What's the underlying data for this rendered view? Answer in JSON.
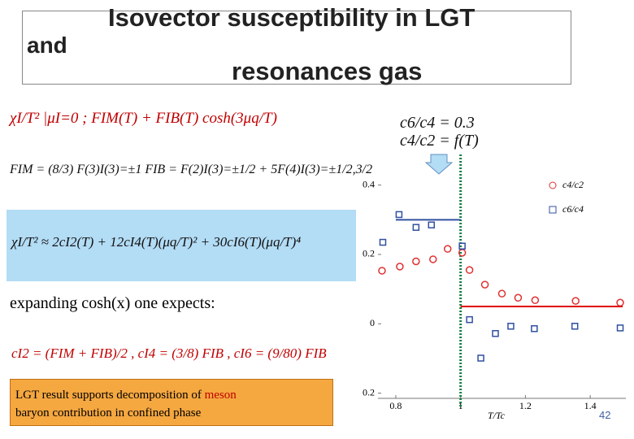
{
  "header": {
    "title": "Isovector susceptibility  in LGT",
    "and": "and",
    "subtitle": "resonances  gas"
  },
  "ratios": [
    "c6/c4 = 0.3",
    "c4/c2 = f(T)"
  ],
  "equations": [
    "χI/T² |μI=0 ;  FIM(T) + FIB(T) cosh(3μq/T)",
    "FIM = (8/3) F(3)I(3)=±1      FIB = F(2)I(3)=±1/2 + 5F(4)I(3)=±1/2,3/2",
    "χI/T² ≈ 2cI2(T) + 12cI4(T)(μq/T)² + 30cI6(T)(μq/T)⁴",
    "cI2 = (FIM + FIB)/2 ,  cI4 = (3/8) FIB ,  cI6 = (9/80) FIB"
  ],
  "expanding": "expanding cosh(x) one expects:",
  "note": [
    "LGT result supports decomposition of",
    "meson",
    "baryon  contribution  in confined phase"
  ],
  "page_number": "42",
  "chart_data": {
    "type": "scatter",
    "x_label": "T/Tc",
    "xlim": [
      0.745,
      1.51
    ],
    "ylim": [
      -0.215,
      0.5
    ],
    "xticks": [
      0.8,
      1,
      1.2,
      1.4
    ],
    "yticks": [
      0.4,
      0.2,
      0,
      {
        "value": -0.2,
        "label": "0.2"
      }
    ],
    "marker_x": 1,
    "series": [
      {
        "name": "c4/c2",
        "color": "#e03030",
        "marker": "circle",
        "x": [
          0.7575,
          0.8125,
          0.8625,
          0.915,
          0.96,
          1.005,
          1.0275,
          1.075,
          1.1275,
          1.1775,
          1.23,
          1.355,
          1.4925
        ],
        "values": [
          0.153,
          0.165,
          0.18,
          0.186,
          0.216,
          0.205,
          0.155,
          0.113,
          0.087,
          0.075,
          0.068,
          0.066,
          0.061
        ]
      },
      {
        "name": "c6/c4",
        "color": "#3050a0",
        "marker": "square",
        "x": [
          0.76,
          0.81,
          0.8625,
          0.91,
          1.005,
          1.0275,
          1.0625,
          1.1075,
          1.155,
          1.2275,
          1.3525,
          1.4925
        ],
        "values": [
          0.235,
          0.315,
          0.278,
          0.285,
          0.224,
          0.012,
          -0.099,
          -0.028,
          -0.007,
          -0.014,
          -0.007,
          -0.012
        ]
      }
    ],
    "reference_lines": [
      {
        "color": "#3050a0",
        "value": 0.3,
        "x": [
          0.8,
          1
        ]
      },
      {
        "color": "#e00000",
        "value": 0.05,
        "x": [
          1,
          1.5
        ]
      }
    ]
  }
}
